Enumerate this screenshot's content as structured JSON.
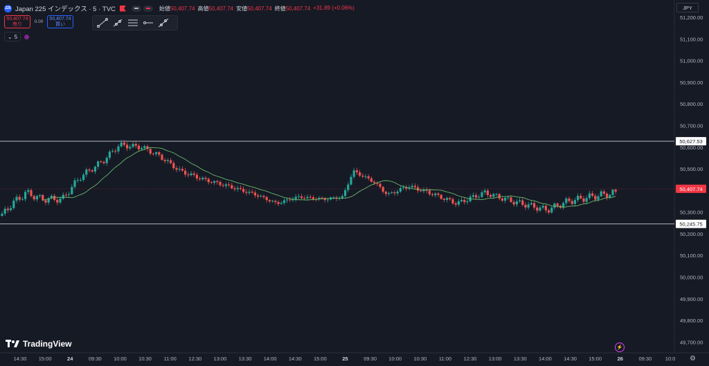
{
  "header": {
    "symbol_badge": "225",
    "title": "Japan 225 インデックス · 5 · TVC",
    "ohlc": [
      {
        "label": "始値",
        "value": "50,407.74"
      },
      {
        "label": "高値",
        "value": "50,407.74"
      },
      {
        "label": "安値",
        "value": "50,407.74"
      },
      {
        "label": "終値",
        "value": "50,407.74"
      },
      {
        "label": "",
        "value": "+31.89 (+0.06%)"
      }
    ]
  },
  "trade": {
    "sell_price": "50,407.74",
    "sell_label": "売り",
    "spread": "0.00",
    "buy_price": "50,407.74",
    "buy_label": "買い"
  },
  "tools": [
    "trend-line-icon",
    "ray-icon",
    "parallel-channel-icon",
    "horizontal-ray-icon",
    "extended-line-icon"
  ],
  "indicator": {
    "value": "5"
  },
  "currency": "JPY",
  "logo_text": "TradingView",
  "colors": {
    "bg": "#161a25",
    "up": "#26a69a",
    "down": "#ef5350",
    "ma": "#66bb6a",
    "level": "#b2b5be",
    "price": "#f23645",
    "grid": "#1f2330"
  },
  "chart_data": {
    "type": "candlestick",
    "ylim": [
      49650,
      51280
    ],
    "y_ticks": [
      51200,
      51100,
      51000,
      50900,
      50800,
      50700,
      50600,
      50500,
      50300,
      50200,
      50100,
      50000,
      49900,
      49800,
      49700
    ],
    "y_tick_labels": [
      "51,200.00",
      "51,100.00",
      "51,000.00",
      "50,900.00",
      "50,800.00",
      "50,700.00",
      "50,600.00",
      "50,500.00",
      "50,300.00",
      "50,200.00",
      "50,100.00",
      "50,000.00",
      "49,900.00",
      "49,800.00",
      "49,700.00"
    ],
    "x_ticks": [
      {
        "label": "14:30",
        "bold": false
      },
      {
        "label": "15:00",
        "bold": false
      },
      {
        "label": "24",
        "bold": true
      },
      {
        "label": "09:30",
        "bold": false
      },
      {
        "label": "10:00",
        "bold": false
      },
      {
        "label": "10:30",
        "bold": false
      },
      {
        "label": "11:00",
        "bold": false
      },
      {
        "label": "12:30",
        "bold": false
      },
      {
        "label": "13:00",
        "bold": false
      },
      {
        "label": "13:30",
        "bold": false
      },
      {
        "label": "14:00",
        "bold": false
      },
      {
        "label": "14:30",
        "bold": false
      },
      {
        "label": "15:00",
        "bold": false
      },
      {
        "label": "25",
        "bold": true
      },
      {
        "label": "09:30",
        "bold": false
      },
      {
        "label": "10:00",
        "bold": false
      },
      {
        "label": "10:30",
        "bold": false
      },
      {
        "label": "11:00",
        "bold": false
      },
      {
        "label": "12:30",
        "bold": false
      },
      {
        "label": "13:00",
        "bold": false
      },
      {
        "label": "13:30",
        "bold": false
      },
      {
        "label": "14:00",
        "bold": false
      },
      {
        "label": "14:30",
        "bold": false
      },
      {
        "label": "15:00",
        "bold": false
      },
      {
        "label": "26",
        "bold": true
      },
      {
        "label": "09:30",
        "bold": false
      },
      {
        "label": "10:0",
        "bold": false
      }
    ],
    "levels": [
      {
        "value": 50627.53,
        "label": "50,627.53"
      },
      {
        "value": 50245.75,
        "label": "50,245.75"
      }
    ],
    "last_price": {
      "value": 50407.74,
      "label": "50,407.74"
    },
    "ma_period": 5
  }
}
